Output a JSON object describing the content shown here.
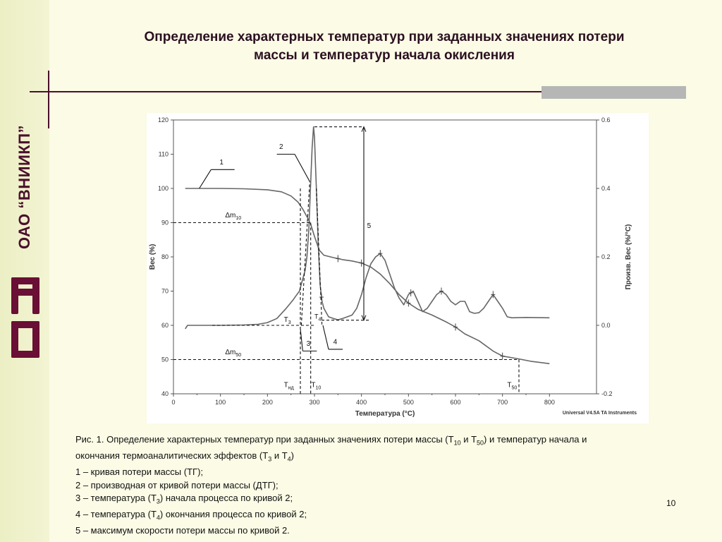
{
  "header": {
    "title_line1": "Определение характерных температур при заданных значениях потери",
    "title_line2": "массы и температур начала окисления"
  },
  "sidebar": {
    "org_name": "ОАО “ВНИИКП”",
    "logo_letters": "ВК"
  },
  "colors": {
    "accent": "#4a0f2c",
    "grey_block": "#b6b6b6",
    "background": "#fbfbe6"
  },
  "chart_data": {
    "type": "line",
    "xlabel": "Температура (°C)",
    "ylabel": "Вес (%)",
    "y2label": "Произв. Вес (%/°C)",
    "xlim": [
      0,
      900
    ],
    "ylim": [
      40,
      120
    ],
    "y2lim": [
      -0.2,
      0.6
    ],
    "x_ticks": [
      "0",
      "100",
      "200",
      "300",
      "400",
      "500",
      "600",
      "700",
      "800"
    ],
    "y_ticks": [
      "40",
      "50",
      "60",
      "70",
      "80",
      "90",
      "100",
      "110",
      "120"
    ],
    "y2_ticks": [
      "-0.2",
      "0.0",
      "0.2",
      "0.4",
      "0.6"
    ],
    "footer": "Universal V4.5A TA Instruments",
    "series": [
      {
        "id": "tg",
        "axis": "left",
        "x": [
          25,
          50,
          100,
          150,
          200,
          230,
          250,
          265,
          275,
          285,
          292,
          300,
          310,
          320,
          340,
          360,
          380,
          400,
          420,
          440,
          460,
          480,
          500,
          520,
          550,
          580,
          600,
          620,
          650,
          680,
          700,
          730,
          760,
          800
        ],
        "y": [
          100,
          100,
          100,
          99.9,
          99.6,
          99,
          97.8,
          96,
          94,
          91.5,
          89.5,
          86,
          82,
          80.5,
          79.8,
          79.2,
          78.8,
          78.2,
          77,
          75,
          72.2,
          69,
          66.5,
          64.7,
          63,
          61,
          59.5,
          57.5,
          55.5,
          52.5,
          51,
          50.3,
          49.5,
          48.8
        ]
      },
      {
        "id": "dtg",
        "axis": "right",
        "x": [
          25,
          30,
          50,
          100,
          150,
          180,
          200,
          220,
          240,
          255,
          260,
          268,
          272,
          276,
          280,
          284,
          288,
          292,
          295,
          298,
          300,
          304,
          308,
          312,
          316,
          320,
          330,
          340,
          350,
          360,
          370,
          380,
          390,
          400,
          410,
          420,
          430,
          440,
          450,
          460,
          470,
          480,
          490,
          500,
          510,
          520,
          530,
          540,
          550,
          560,
          570,
          580,
          590,
          600,
          610,
          620,
          630,
          640,
          650,
          660,
          670,
          680,
          690,
          700,
          710,
          720,
          750,
          800
        ],
        "y": [
          -0.01,
          0.0,
          0.0,
          0.0,
          0.001,
          0.003,
          0.008,
          0.02,
          0.05,
          0.075,
          0.085,
          0.1,
          0.12,
          0.14,
          0.16,
          0.2,
          0.28,
          0.42,
          0.52,
          0.58,
          0.55,
          0.4,
          0.24,
          0.12,
          0.07,
          0.05,
          0.025,
          0.02,
          0.016,
          0.02,
          0.025,
          0.03,
          0.05,
          0.09,
          0.14,
          0.18,
          0.2,
          0.21,
          0.19,
          0.15,
          0.11,
          0.08,
          0.06,
          0.09,
          0.1,
          0.07,
          0.04,
          0.05,
          0.07,
          0.09,
          0.1,
          0.09,
          0.07,
          0.06,
          0.07,
          0.07,
          0.04,
          0.035,
          0.037,
          0.05,
          0.07,
          0.09,
          0.07,
          0.05,
          0.025,
          0.022,
          0.023,
          0.022
        ]
      }
    ],
    "marks": [
      {
        "series": "tg",
        "x": [
          350,
          400,
          500,
          600,
          700
        ]
      },
      {
        "series": "dtg",
        "x": [
          315,
          440,
          505,
          570,
          680
        ]
      }
    ],
    "annotations": [
      {
        "id": "callout-1",
        "text": "1",
        "points_to": "tg"
      },
      {
        "id": "callout-2",
        "text": "2",
        "points_to": "dtg"
      },
      {
        "id": "label-5",
        "text": "5"
      },
      {
        "id": "label-3",
        "text": "3"
      },
      {
        "id": "label-4",
        "text": "4"
      },
      {
        "id": "label-dm10",
        "text": "Δm",
        "sub": "10"
      },
      {
        "id": "label-dm50",
        "text": "Δm",
        "sub": "50"
      },
      {
        "id": "label-t3",
        "text": "T",
        "sub": "3"
      },
      {
        "id": "label-t4",
        "text": "T",
        "sub": "4"
      },
      {
        "id": "label-tnd",
        "text": "T",
        "sub": "нд"
      },
      {
        "id": "label-t10",
        "text": "T",
        "sub": "10"
      },
      {
        "id": "label-t50",
        "text": "T",
        "sub": "50"
      }
    ]
  },
  "caption": {
    "lines": [
      [
        {
          "t": "Рис. 1. Определение характерных температур при заданных значениях потери массы (T"
        },
        {
          "t": "10",
          "sub": true
        },
        {
          "t": " и T"
        },
        {
          "t": "50",
          "sub": true
        },
        {
          "t": ") и температур начала и"
        }
      ],
      [
        {
          "t": "окончания термоаналитических эффектов (T"
        },
        {
          "t": "3",
          "sub": true
        },
        {
          "t": " и T"
        },
        {
          "t": "4",
          "sub": true
        },
        {
          "t": ")"
        }
      ],
      [
        {
          "t": "1 – кривая потери массы (ТГ);"
        }
      ],
      [
        {
          "t": "2 – производная от кривой потери массы (ДТГ);"
        }
      ],
      [
        {
          "t": "3 – температура (T"
        },
        {
          "t": "3",
          "sub": true
        },
        {
          "t": ") начала процесса по кривой 2;"
        }
      ],
      [
        {
          "t": "4 – температура (T"
        },
        {
          "t": "4",
          "sub": true
        },
        {
          "t": ") окончания процесса по кривой 2;"
        }
      ],
      [
        {
          "t": "5 – максимум скорости потери массы по кривой 2."
        }
      ]
    ]
  },
  "footer": {
    "page_number": "10"
  }
}
